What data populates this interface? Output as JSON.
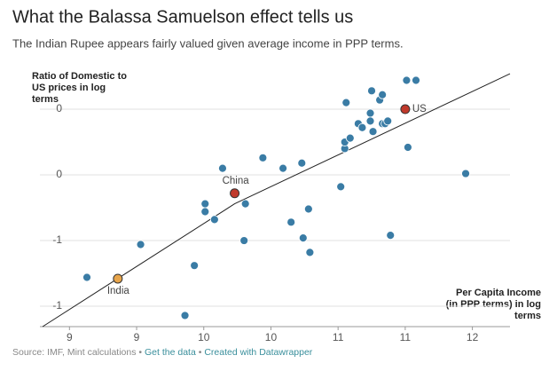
{
  "chart_data": {
    "type": "scatter",
    "title": "What the Balassa Samuelson effect tells us",
    "subtitle": "The Indian Rupee appears fairly valued given average income in PPP terms.",
    "y_label": [
      "Ratio of Domestic to",
      "US prices in log",
      "terms"
    ],
    "x_label": [
      "Per Capita Income",
      "(in PPP terms) in log",
      "terms"
    ],
    "source": "Source: IMF, Mint calculations",
    "separator": "•",
    "links": [
      "Get the data",
      "Created with Datawrapper"
    ],
    "color": "#3a7ca5",
    "xlim": [
      8.28,
      11.78
    ],
    "ylim": [
      -1.655,
      0.257
    ],
    "xticks": [
      {
        "value": 8.5,
        "label": "9"
      },
      9,
      {
        "value": 9.5,
        "label": "10"
      },
      10,
      {
        "value": 10.5,
        "label": "11"
      },
      11,
      {
        "value": 11.5,
        "label": "12"
      }
    ],
    "yticks": [
      0,
      {
        "value": -0.5,
        "label": "0"
      },
      -1,
      {
        "value": -1.5,
        "label": "-1"
      }
    ],
    "grid": true,
    "points": {
      "x": [
        8.63,
        9.03,
        9.43,
        9.36,
        9.51,
        9.51,
        9.58,
        9.64,
        9.8,
        9.81,
        9.94,
        10.09,
        10.15,
        10.23,
        10.24,
        10.28,
        10.29,
        10.52,
        10.55,
        10.55,
        10.56,
        10.59,
        10.65,
        10.68,
        10.75,
        10.74,
        10.76,
        10.74,
        10.81,
        10.83,
        10.83,
        10.85,
        10.87,
        10.89,
        11.01,
        11.02,
        11.08,
        11.45
      ],
      "y": [
        -1.28,
        -1.03,
        -1.19,
        -1.57,
        -0.72,
        -0.78,
        -0.84,
        -0.45,
        -1.0,
        -0.72,
        -0.37,
        -0.45,
        -0.86,
        -0.41,
        -0.98,
        -0.76,
        -1.09,
        -0.59,
        -0.3,
        -0.25,
        0.05,
        -0.22,
        -0.11,
        -0.14,
        0.14,
        -0.03,
        -0.17,
        -0.09,
        0.07,
        0.11,
        -0.11,
        -0.11,
        -0.09,
        -0.96,
        0.22,
        -0.29,
        0.22,
        -0.49
      ]
    },
    "highlights": [
      {
        "label": "India",
        "x": 8.86,
        "y": -1.29,
        "color": "#e8a54b"
      },
      {
        "label": "China",
        "x": 9.73,
        "y": -0.64,
        "color": "#c0392b"
      },
      {
        "label": "US",
        "x": 11.0,
        "y": 0.0,
        "color": "#c0392b"
      }
    ],
    "trend": {
      "x": [
        8.3,
        9.73,
        11.78
      ],
      "y": [
        -1.655,
        -0.72,
        0.27
      ],
      "color": "#222"
    }
  }
}
